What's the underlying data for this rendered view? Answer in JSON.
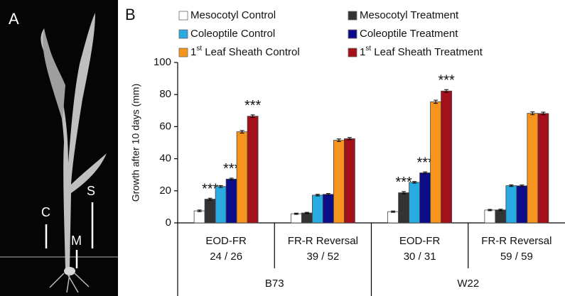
{
  "panels": {
    "a": {
      "label": "A",
      "markers": [
        "C",
        "M",
        "S"
      ]
    }
  },
  "chart_data": {
    "type": "bar",
    "panel_label": "B",
    "y_label": "Growth after 10 days (mm)",
    "categories": [
      "EOD-FR",
      "FR-R Reversal",
      "EOD-FR",
      "FR-R Reversal"
    ],
    "sample_sizes": [
      "24 / 26",
      "39 / 52",
      "30 / 31",
      "59 / 59"
    ],
    "groups": [
      "B73",
      "W22"
    ],
    "ylim": [
      0,
      100
    ],
    "yticks": [
      0,
      20,
      40,
      60,
      80,
      100
    ],
    "series": [
      {
        "name": "Mesocotyl Control",
        "color": "#ffffff",
        "values": [
          7.5,
          5.7,
          7,
          8
        ],
        "errors": [
          0.5,
          0.4,
          0.4,
          0.4
        ],
        "significance": [
          null,
          null,
          null,
          null
        ]
      },
      {
        "name": "Mesocotyl Treatment",
        "color": "#333333",
        "values": [
          14.8,
          6.2,
          18.8,
          8.1
        ],
        "errors": [
          0.6,
          0.4,
          0.7,
          0.4
        ],
        "significance": [
          "***",
          null,
          "***",
          null
        ]
      },
      {
        "name": "Coleoptile Control",
        "color": "#29abe2",
        "values": [
          22.7,
          17.3,
          25.3,
          23.2
        ],
        "errors": [
          0.6,
          0.5,
          0.5,
          0.5
        ],
        "significance": [
          null,
          null,
          null,
          null
        ]
      },
      {
        "name": "Coleoptile Treatment",
        "color": "#0c0c8a",
        "values": [
          27.3,
          17.8,
          31.2,
          23.1
        ],
        "errors": [
          0.6,
          0.5,
          0.6,
          0.5
        ],
        "significance": [
          "***",
          null,
          "***",
          null
        ]
      },
      {
        "name": "1st Leaf Sheath Control",
        "color": "#f7941d",
        "values": [
          56.8,
          51.5,
          75.5,
          68.3
        ],
        "errors": [
          0.8,
          0.8,
          1,
          0.9
        ],
        "significance": [
          null,
          null,
          null,
          null
        ]
      },
      {
        "name": "1st Leaf Sheath Treatment",
        "color": "#a3101a",
        "values": [
          66.5,
          52.5,
          82.2,
          68.2
        ],
        "errors": [
          0.8,
          0.7,
          0.9,
          0.8
        ],
        "significance": [
          "***",
          null,
          "***",
          null
        ]
      }
    ]
  }
}
